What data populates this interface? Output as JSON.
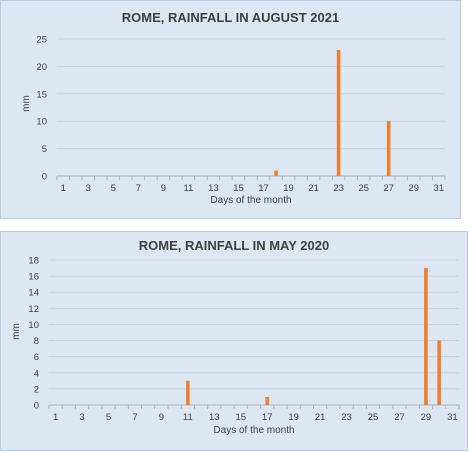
{
  "colors": {
    "bar": "#ed7d31",
    "grid": "#c9d3df",
    "axis": "#a6b3c2"
  },
  "chart_data": [
    {
      "type": "bar",
      "title": "ROME, RAINFALL IN AUGUST 2021",
      "xlabel": "Days of the month",
      "ylabel": "mm",
      "x_ticks": [
        "1",
        "3",
        "5",
        "7",
        "9",
        "11",
        "13",
        "15",
        "17",
        "19",
        "21",
        "23",
        "25",
        "27",
        "29",
        "31"
      ],
      "x_range": [
        1,
        31
      ],
      "ylim": [
        0,
        25
      ],
      "y_ticks": [
        "0",
        "5",
        "10",
        "15",
        "20",
        "25"
      ],
      "y_tick_values": [
        0,
        5,
        10,
        15,
        20,
        25
      ],
      "grid": true,
      "bars": [
        {
          "day": 18,
          "value": 1
        },
        {
          "day": 23,
          "value": 23
        },
        {
          "day": 27,
          "value": 10
        }
      ]
    },
    {
      "type": "bar",
      "title": "ROME, RAINFALL IN MAY 2020",
      "xlabel": "Days of the month",
      "ylabel": "mm",
      "x_ticks": [
        "1",
        "3",
        "5",
        "7",
        "9",
        "11",
        "13",
        "15",
        "17",
        "19",
        "21",
        "23",
        "25",
        "27",
        "29",
        "31"
      ],
      "x_range": [
        1,
        31
      ],
      "ylim": [
        0,
        18
      ],
      "y_ticks": [
        "0",
        "2",
        "4",
        "6",
        "8",
        "10",
        "12",
        "14",
        "16",
        "18"
      ],
      "y_tick_values": [
        0,
        2,
        4,
        6,
        8,
        10,
        12,
        14,
        16,
        18
      ],
      "grid": true,
      "bars": [
        {
          "day": 11,
          "value": 3
        },
        {
          "day": 17,
          "value": 1
        },
        {
          "day": 29,
          "value": 17
        },
        {
          "day": 30,
          "value": 8
        }
      ]
    }
  ]
}
